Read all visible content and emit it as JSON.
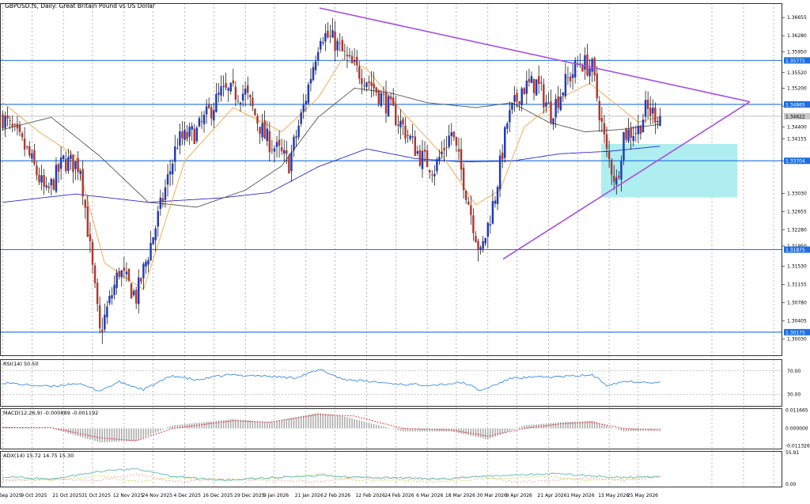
{
  "header": {
    "main": "GBPUSD.fs, Daily:  Great Britain Pound vs US Dollar"
  },
  "colors": {
    "bull": "#1f39b8",
    "bear": "#b5362d",
    "wick": "#000000",
    "hline": "#1e6fe0",
    "triangle": "#a64ee0",
    "zone": "#aeeef0",
    "ma_fast": "#f4a446",
    "ma_mid": "#555555",
    "ma_slow": "#2a2ad0",
    "rsi": "#3b8de8",
    "macd_signal": "#e03030",
    "macd_hist": "#aaaaaa",
    "adx": "#5fb8b0",
    "di_plus": "#c8d94a",
    "di_minus": "#f0a0a0",
    "grid": "#d9d9d9",
    "vline": "#444444"
  },
  "chart_data": [
    {
      "type": "candlestick",
      "title": "GBPUSD.fs, Daily:  Great Britain Pound vs US Dollar",
      "ylim": [
        1.297,
        1.3695
      ],
      "y_ticks": [
        "1.36655",
        "1.36280",
        "1.35950",
        "1.35520",
        "1.35200",
        "1.34830",
        "1.34400",
        "1.34155",
        "1.33700",
        "1.33030",
        "1.32655",
        "1.32280",
        "1.31950",
        "1.31530",
        "1.31155",
        "1.30780",
        "1.30405",
        "1.30030"
      ],
      "hlines": [
        "1.37992",
        "1.37120",
        "1.35771",
        "1.34865",
        "1.33704",
        "1.31875",
        "1.30175"
      ],
      "current_price": "1.34622",
      "x_labels": [
        "29 Sep 2025",
        "9 Oct 2025",
        "21 Oct 2025",
        "31 Oct 2025",
        "12 Nov 2025",
        "24 Nov 2025",
        "4 Dec 2025",
        "16 Dec 2025",
        "29 Dec 2025",
        "9 Jan 2026",
        "21 Jan 2026",
        "2 Feb 2026",
        "12 Feb 2026",
        "24 Feb 2026",
        "6 Mar 2026",
        "18 Mar 2026",
        "30 Mar 2026",
        "9 Apr 2026",
        "21 Apr 2026",
        "1 May 2026",
        "13 May 2026",
        "25 May 2026"
      ],
      "series_keypoints": {
        "close": [
          [
            0,
            1.346
          ],
          [
            10,
            1.339
          ],
          [
            18,
            1.33
          ],
          [
            25,
            1.337
          ],
          [
            32,
            1.336
          ],
          [
            40,
            1.3015
          ],
          [
            48,
            1.3145
          ],
          [
            55,
            1.309
          ],
          [
            63,
            1.3235
          ],
          [
            72,
            1.341
          ],
          [
            80,
            1.343
          ],
          [
            90,
            1.351
          ],
          [
            100,
            1.351
          ],
          [
            108,
            1.342
          ],
          [
            118,
            1.3365
          ],
          [
            124,
            1.348
          ],
          [
            131,
            1.3635
          ],
          [
            137,
            1.3615
          ],
          [
            143,
            1.357
          ],
          [
            150,
            1.354
          ],
          [
            158,
            1.349
          ],
          [
            165,
            1.344
          ],
          [
            172,
            1.338
          ],
          [
            178,
            1.3355
          ],
          [
            185,
            1.343
          ],
          [
            190,
            1.333
          ],
          [
            197,
            1.3175
          ],
          [
            203,
            1.33
          ],
          [
            208,
            1.345
          ],
          [
            214,
            1.352
          ],
          [
            220,
            1.353
          ],
          [
            226,
            1.347
          ],
          [
            232,
            1.353
          ],
          [
            238,
            1.3575
          ],
          [
            243,
            1.356
          ],
          [
            249,
            1.3385
          ],
          [
            253,
            1.3325
          ],
          [
            256,
            1.3425
          ],
          [
            262,
            1.3435
          ],
          [
            265,
            1.3475
          ],
          [
            270,
            1.3465
          ]
        ],
        "ma_fast": [
          [
            0,
            1.349
          ],
          [
            15,
            1.343
          ],
          [
            30,
            1.338
          ],
          [
            42,
            1.316
          ],
          [
            58,
            1.3105
          ],
          [
            75,
            1.337
          ],
          [
            95,
            1.348
          ],
          [
            115,
            1.343
          ],
          [
            130,
            1.35
          ],
          [
            140,
            1.358
          ],
          [
            150,
            1.356
          ],
          [
            165,
            1.347
          ],
          [
            180,
            1.339
          ],
          [
            195,
            1.328
          ],
          [
            205,
            1.331
          ],
          [
            215,
            1.344
          ],
          [
            230,
            1.35
          ],
          [
            242,
            1.353
          ],
          [
            252,
            1.349
          ],
          [
            262,
            1.345
          ],
          [
            270,
            1.346
          ]
        ],
        "ma_mid": [
          [
            0,
            1.3435
          ],
          [
            20,
            1.346
          ],
          [
            40,
            1.338
          ],
          [
            60,
            1.3285
          ],
          [
            80,
            1.3275
          ],
          [
            100,
            1.331
          ],
          [
            115,
            1.336
          ],
          [
            130,
            1.346
          ],
          [
            145,
            1.352
          ],
          [
            160,
            1.351
          ],
          [
            175,
            1.349
          ],
          [
            195,
            1.348
          ],
          [
            210,
            1.349
          ],
          [
            225,
            1.345
          ],
          [
            240,
            1.343
          ],
          [
            255,
            1.3435
          ],
          [
            270,
            1.3445
          ]
        ],
        "ma_slow": [
          [
            0,
            1.3285
          ],
          [
            30,
            1.3302
          ],
          [
            60,
            1.3285
          ],
          [
            90,
            1.3294
          ],
          [
            110,
            1.3305
          ],
          [
            130,
            1.3358
          ],
          [
            150,
            1.3395
          ],
          [
            170,
            1.3375
          ],
          [
            190,
            1.3368
          ],
          [
            210,
            1.337
          ],
          [
            230,
            1.3385
          ],
          [
            250,
            1.339
          ],
          [
            270,
            1.34
          ]
        ]
      },
      "triangle": {
        "top": 1.3685,
        "apex": 1.3492,
        "bottom": 1.3168
      },
      "zone": {
        "high": 1.3405,
        "low": 1.3295
      }
    },
    {
      "type": "line",
      "name": "RSI(14) 50.50",
      "ylim": [
        10,
        90
      ],
      "y_ticks": [
        "70.00",
        "30.00"
      ],
      "values": [
        [
          0,
          50
        ],
        [
          10,
          46
        ],
        [
          20,
          43
        ],
        [
          30,
          49
        ],
        [
          40,
          36
        ],
        [
          48,
          51
        ],
        [
          58,
          38
        ],
        [
          70,
          62
        ],
        [
          80,
          54
        ],
        [
          92,
          63
        ],
        [
          105,
          62
        ],
        [
          120,
          58
        ],
        [
          131,
          72
        ],
        [
          140,
          56
        ],
        [
          150,
          52
        ],
        [
          165,
          47
        ],
        [
          178,
          46
        ],
        [
          190,
          50
        ],
        [
          197,
          36
        ],
        [
          210,
          58
        ],
        [
          230,
          60
        ],
        [
          243,
          63
        ],
        [
          249,
          46
        ],
        [
          256,
          52
        ],
        [
          270,
          50.5
        ]
      ]
    },
    {
      "type": "histogram",
      "name": "MACD(12,26,9) -0.000889 -0.001192",
      "y_ticks": [
        "0.011665",
        "0.000000",
        "-0.011326"
      ],
      "hist": [
        [
          0,
          0.001
        ],
        [
          20,
          0.0
        ],
        [
          40,
          -0.009
        ],
        [
          55,
          -0.008
        ],
        [
          70,
          0.002
        ],
        [
          95,
          0.006
        ],
        [
          110,
          0.004
        ],
        [
          130,
          0.01
        ],
        [
          140,
          0.008
        ],
        [
          165,
          -0.002
        ],
        [
          185,
          -0.002
        ],
        [
          200,
          -0.007
        ],
        [
          215,
          0.002
        ],
        [
          230,
          0.004
        ],
        [
          243,
          0.005
        ],
        [
          256,
          -0.002
        ],
        [
          270,
          -0.001
        ]
      ],
      "signal": [
        [
          0,
          0.0005
        ],
        [
          20,
          0.0005
        ],
        [
          40,
          -0.006
        ],
        [
          55,
          -0.008
        ],
        [
          70,
          0.0
        ],
        [
          95,
          0.005
        ],
        [
          110,
          0.004
        ],
        [
          130,
          0.009
        ],
        [
          145,
          0.008
        ],
        [
          165,
          0.0
        ],
        [
          185,
          -0.001
        ],
        [
          200,
          -0.005
        ],
        [
          215,
          0.0
        ],
        [
          230,
          0.003
        ],
        [
          243,
          0.004
        ],
        [
          256,
          0.0
        ],
        [
          270,
          -0.0012
        ]
      ]
    },
    {
      "type": "line",
      "name": "ADX(14) 15.72 14.75 15.30",
      "y_ticks": [
        "55.91",
        "0.00"
      ],
      "adx": [
        [
          0,
          16
        ],
        [
          20,
          12
        ],
        [
          40,
          24
        ],
        [
          55,
          28
        ],
        [
          70,
          16
        ],
        [
          90,
          10
        ],
        [
          110,
          14
        ],
        [
          131,
          18
        ],
        [
          145,
          15
        ],
        [
          165,
          14
        ],
        [
          180,
          12
        ],
        [
          197,
          16
        ],
        [
          210,
          18
        ],
        [
          225,
          20
        ],
        [
          240,
          18
        ],
        [
          256,
          14
        ],
        [
          270,
          15.7
        ]
      ],
      "di_plus": [
        [
          0,
          12
        ],
        [
          20,
          10
        ],
        [
          40,
          16
        ],
        [
          55,
          8
        ],
        [
          70,
          14
        ],
        [
          90,
          11
        ],
        [
          110,
          12
        ],
        [
          131,
          20
        ],
        [
          145,
          10
        ],
        [
          165,
          10
        ],
        [
          180,
          8
        ],
        [
          197,
          12
        ],
        [
          210,
          13
        ],
        [
          225,
          16
        ],
        [
          240,
          10
        ],
        [
          256,
          12
        ],
        [
          270,
          14.8
        ]
      ],
      "di_minus": [
        [
          0,
          10
        ],
        [
          20,
          12
        ],
        [
          40,
          10
        ],
        [
          55,
          20
        ],
        [
          70,
          8
        ],
        [
          90,
          12
        ],
        [
          110,
          10
        ],
        [
          131,
          8
        ],
        [
          145,
          14
        ],
        [
          165,
          12
        ],
        [
          180,
          12
        ],
        [
          197,
          16
        ],
        [
          210,
          8
        ],
        [
          225,
          9
        ],
        [
          240,
          14
        ],
        [
          256,
          10
        ],
        [
          270,
          15.3
        ]
      ]
    }
  ]
}
